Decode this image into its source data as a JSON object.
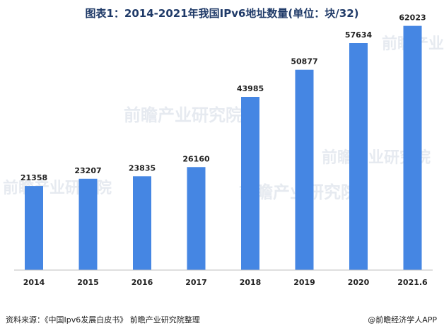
{
  "watermark": {
    "text": "前瞻产业研究院"
  },
  "footer": {
    "source": "资料来源：《中国Ipv6发展白皮书》 前瞻产业研究院整理",
    "brand": "@前瞻经济学人APP"
  },
  "chart_data": {
    "type": "bar",
    "title": "图表1：2014-2021年我国IPv6地址数量(单位：块/32)",
    "categories": [
      "2014",
      "2015",
      "2016",
      "2017",
      "2018",
      "2019",
      "2020",
      "2021.6"
    ],
    "values": [
      21358,
      23207,
      23835,
      26160,
      43985,
      50877,
      57634,
      62023
    ],
    "xlabel": "",
    "ylabel": "",
    "ylim": [
      0,
      65000
    ],
    "grid": false,
    "legend": "none",
    "bar_color": "#4586e3",
    "axis_color": "#bfbfbf"
  }
}
